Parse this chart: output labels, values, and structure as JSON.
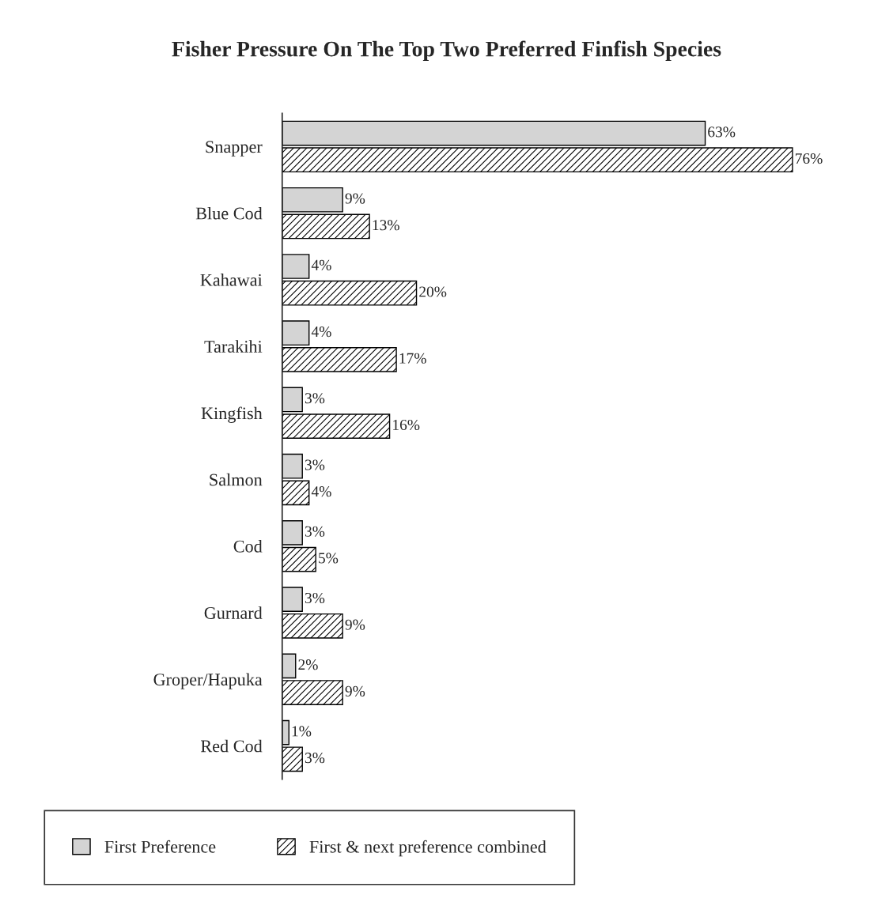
{
  "chart_data": {
    "type": "bar",
    "orientation": "horizontal",
    "title": "Fisher Pressure On The Top Two Preferred Finfish Species",
    "categories": [
      "Snapper",
      "Blue Cod",
      "Kahawai",
      "Tarakihi",
      "Kingfish",
      "Salmon",
      "Cod",
      "Gurnard",
      "Groper/Hapuka",
      "Red Cod"
    ],
    "series": [
      {
        "name": "First Preference",
        "color": "#d4d4d4",
        "values": [
          63,
          9,
          4,
          4,
          3,
          3,
          3,
          3,
          2,
          1
        ],
        "value_labels": [
          "63%",
          "9%",
          "4%",
          "4%",
          "3%",
          "3%",
          "3%",
          "3%",
          "2%",
          "1%"
        ]
      },
      {
        "name": "First & next preference combined",
        "color": "#000000",
        "values": [
          76,
          13,
          20,
          17,
          16,
          4,
          5,
          9,
          9,
          3
        ],
        "value_labels": [
          "76%",
          "13%",
          "20%",
          "17%",
          "16%",
          "4%",
          "5%",
          "9%",
          "9%",
          "3%"
        ]
      }
    ],
    "legend": "bottom",
    "grid": false
  }
}
